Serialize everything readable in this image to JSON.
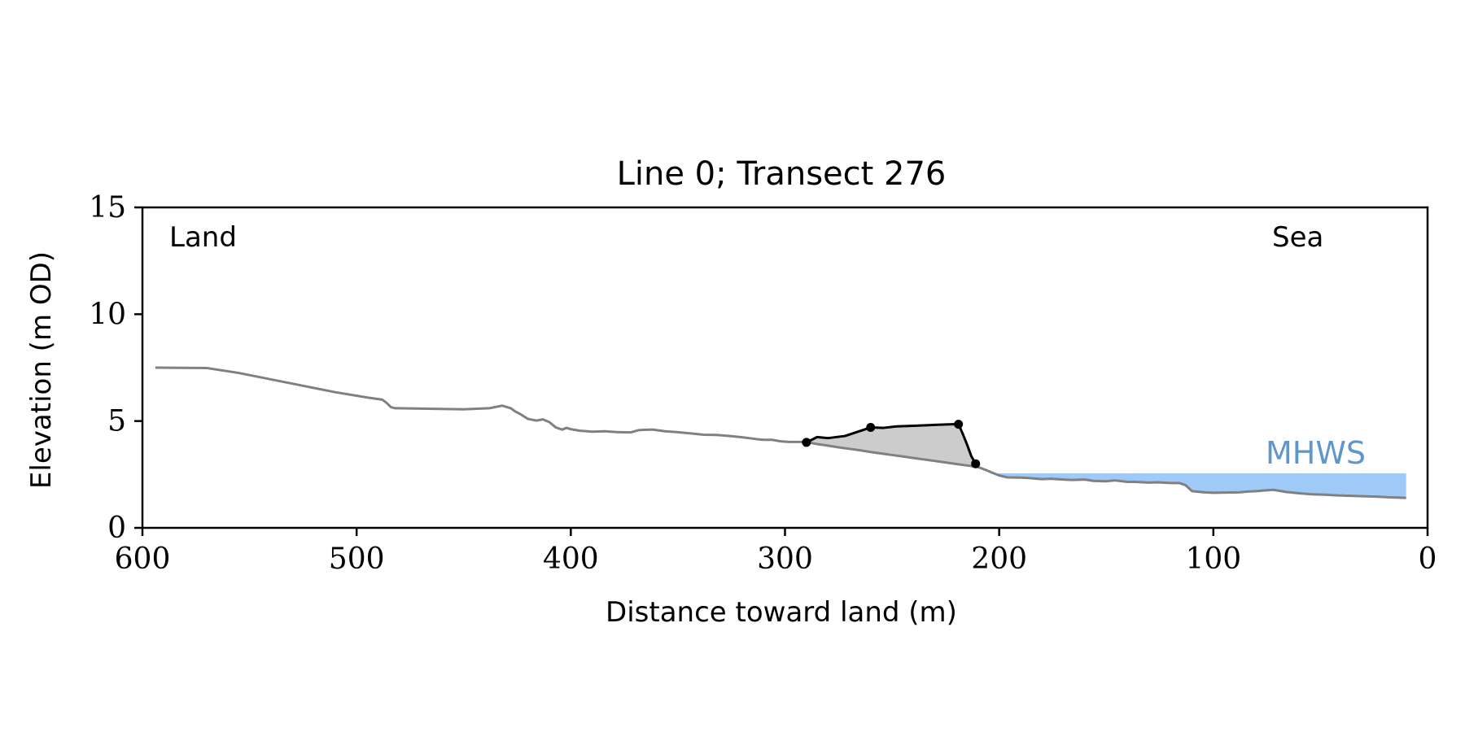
{
  "chart_data": {
    "type": "line",
    "title": "Line 0; Transect 276",
    "xlabel": "Distance toward land (m)",
    "ylabel": "Elevation (m OD)",
    "xlim": [
      600,
      0
    ],
    "ylim": [
      0,
      15
    ],
    "x_ticks": [
      600,
      500,
      400,
      300,
      200,
      100,
      0
    ],
    "y_ticks": [
      0,
      5,
      10,
      15
    ],
    "grid": false,
    "annotations": {
      "land": "Land",
      "sea": "Sea",
      "mhws": "MHWS"
    },
    "colors": {
      "profile": "#808080",
      "dune": "#000000",
      "dune_fill": "#cccccc",
      "mhws_fill": "#9fcaf8",
      "mhws_text": "#5f97cc"
    },
    "series": [
      {
        "name": "",
        "role": "profile",
        "x": [
          594,
          570,
          555,
          540,
          525,
          510,
          495,
          488,
          486,
          484,
          482,
          470,
          450,
          438,
          432,
          428,
          426,
          424,
          420,
          416,
          413,
          410,
          407,
          404,
          402,
          400,
          396,
          390,
          384,
          378,
          372,
          368,
          362,
          356,
          350,
          344,
          338,
          332,
          326,
          320,
          316,
          313,
          310,
          306,
          302,
          298,
          294,
          290,
          285,
          280,
          275,
          270,
          265,
          260,
          255,
          250,
          245,
          240,
          235,
          230,
          225,
          220,
          215,
          212,
          210,
          206,
          200,
          196,
          190,
          186,
          180,
          176,
          170,
          166,
          160,
          156,
          150,
          146,
          140,
          136,
          130,
          126,
          120,
          116,
          113,
          110,
          104,
          100,
          94,
          88,
          84,
          80,
          76,
          72,
          66,
          60,
          54,
          48,
          42,
          36,
          30,
          24,
          18,
          14,
          10
        ],
        "y": [
          7.5,
          7.48,
          7.25,
          6.95,
          6.65,
          6.35,
          6.1,
          6.0,
          5.85,
          5.65,
          5.6,
          5.58,
          5.55,
          5.6,
          5.72,
          5.6,
          5.45,
          5.35,
          5.1,
          5.02,
          5.08,
          4.95,
          4.7,
          4.6,
          4.68,
          4.62,
          4.55,
          4.5,
          4.52,
          4.48,
          4.47,
          4.58,
          4.6,
          4.52,
          4.48,
          4.42,
          4.36,
          4.35,
          4.3,
          4.24,
          4.19,
          4.15,
          4.12,
          4.12,
          4.05,
          4.02,
          4.02,
          4.02,
          3.92,
          3.85,
          3.77,
          3.7,
          3.63,
          3.55,
          3.48,
          3.41,
          3.34,
          3.27,
          3.2,
          3.13,
          3.06,
          2.99,
          2.92,
          2.88,
          2.85,
          2.7,
          2.45,
          2.36,
          2.35,
          2.33,
          2.28,
          2.3,
          2.26,
          2.24,
          2.26,
          2.2,
          2.18,
          2.22,
          2.15,
          2.15,
          2.12,
          2.13,
          2.1,
          2.1,
          2.0,
          1.72,
          1.66,
          1.64,
          1.65,
          1.66,
          1.7,
          1.72,
          1.75,
          1.78,
          1.68,
          1.62,
          1.57,
          1.55,
          1.52,
          1.5,
          1.48,
          1.46,
          1.43,
          1.42,
          1.4
        ]
      },
      {
        "name": "",
        "role": "dune",
        "x": [
          290,
          285,
          280,
          272,
          266,
          260,
          254,
          248,
          240,
          230,
          222,
          219,
          217,
          215,
          213,
          211
        ],
        "y": [
          4.0,
          4.25,
          4.2,
          4.3,
          4.5,
          4.7,
          4.68,
          4.75,
          4.78,
          4.82,
          4.85,
          4.85,
          4.4,
          3.9,
          3.35,
          3.0
        ]
      }
    ],
    "markers": {
      "x": [
        290,
        260,
        219,
        211
      ],
      "y": [
        4.0,
        4.7,
        4.85,
        3.0
      ]
    },
    "dune_baseline": {
      "x": [
        290,
        211
      ],
      "y": [
        4.02,
        2.88
      ]
    },
    "mhws": {
      "level": 2.55,
      "x_range": [
        205,
        10
      ]
    }
  }
}
